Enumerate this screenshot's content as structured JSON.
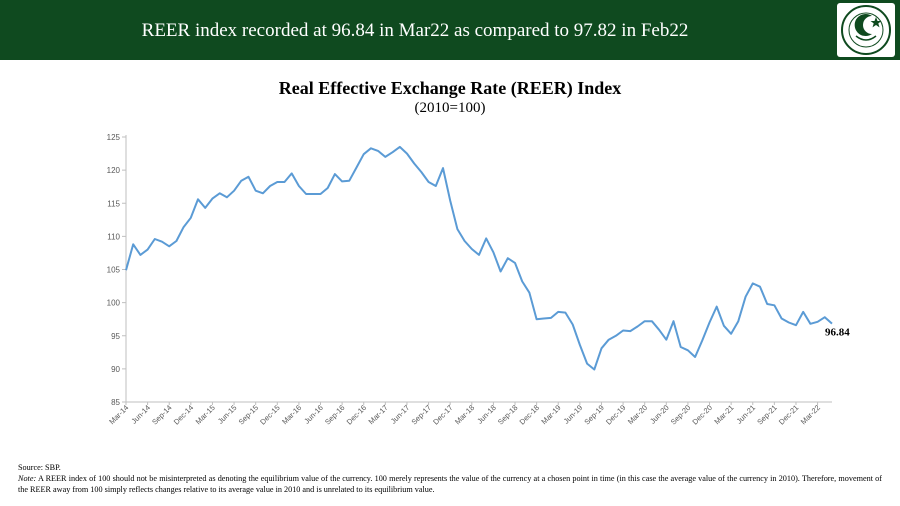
{
  "header": {
    "title": "REER index recorded at 96.84 in Mar22 as compared to 97.82 in Feb22",
    "logo_text": "STATE BANK OF PAKISTAN"
  },
  "colors": {
    "header_bg": "#0f4a1f",
    "line": "#5b9bd5",
    "axis": "#bfbfbf"
  },
  "chart_data": {
    "type": "line",
    "title": "Real Effective Exchange Rate (REER) Index",
    "subtitle": "(2010=100)",
    "xlabel": "",
    "ylabel": "",
    "ylim": [
      85,
      125
    ],
    "yticks": [
      85,
      90,
      95,
      100,
      105,
      110,
      115,
      120,
      125
    ],
    "grid": false,
    "xtick_labels": [
      "Mar-14",
      "Jun-14",
      "Sep-14",
      "Dec-14",
      "Mar-15",
      "Jun-15",
      "Sep-15",
      "Dec-15",
      "Mar-16",
      "Jun-16",
      "Sep-16",
      "Dec-16",
      "Mar-17",
      "Jun-17",
      "Sep-17",
      "Dec-17",
      "Mar-18",
      "Jun-18",
      "Sep-18",
      "Dec-18",
      "Mar-19",
      "Jun-19",
      "Sep-19",
      "Dec-19",
      "Mar-20",
      "Jun-20",
      "Sep-20",
      "Dec-20",
      "Mar-21",
      "Jun-21",
      "Sep-21",
      "Dec-21",
      "Mar-22"
    ],
    "end_label": "96.84",
    "series": [
      {
        "values": [
          104.9,
          108.8,
          107.2,
          108.0,
          109.6,
          109.2,
          108.5,
          109.3,
          111.4,
          112.8,
          115.6,
          114.3,
          115.7,
          116.5,
          115.9,
          116.9,
          118.4,
          119.0,
          116.9,
          116.5,
          117.6,
          118.2,
          118.2,
          119.5,
          117.6,
          116.4,
          116.4,
          116.4,
          117.3,
          119.4,
          118.3,
          118.4,
          120.4,
          122.4,
          123.3,
          122.9,
          122.0,
          122.7,
          123.5,
          122.5,
          121.0,
          119.7,
          118.2,
          117.6,
          120.3,
          115.4,
          111.1,
          109.3,
          108.1,
          107.2,
          109.7,
          107.6,
          104.7,
          106.7,
          106.0,
          103.2,
          101.5,
          97.5,
          97.6,
          97.7,
          98.6,
          98.5,
          96.7,
          93.6,
          90.8,
          89.9,
          93.1,
          94.4,
          95.0,
          95.8,
          95.7,
          96.4,
          97.2,
          97.2,
          95.9,
          94.4,
          97.2,
          93.3,
          92.8,
          91.8,
          94.3,
          97.0,
          99.4,
          96.5,
          95.3,
          97.2,
          100.9,
          102.9,
          102.4,
          99.8,
          99.6,
          97.6,
          97.0,
          96.6,
          98.6,
          96.8,
          97.1,
          97.8,
          96.84
        ]
      }
    ]
  },
  "footer": {
    "source": "Source: SBP.",
    "note_label": "Note:",
    "note_text": " A REER index of 100 should not be misinterpreted as denoting the equilibrium value of the currency. 100 merely represents the value of the currency at a chosen point in time (in this case the average value of the currency in 2010). Therefore, movement of the REER away from 100 simply reflects changes relative to its average value in 2010 and is unrelated to its equilibrium value."
  }
}
